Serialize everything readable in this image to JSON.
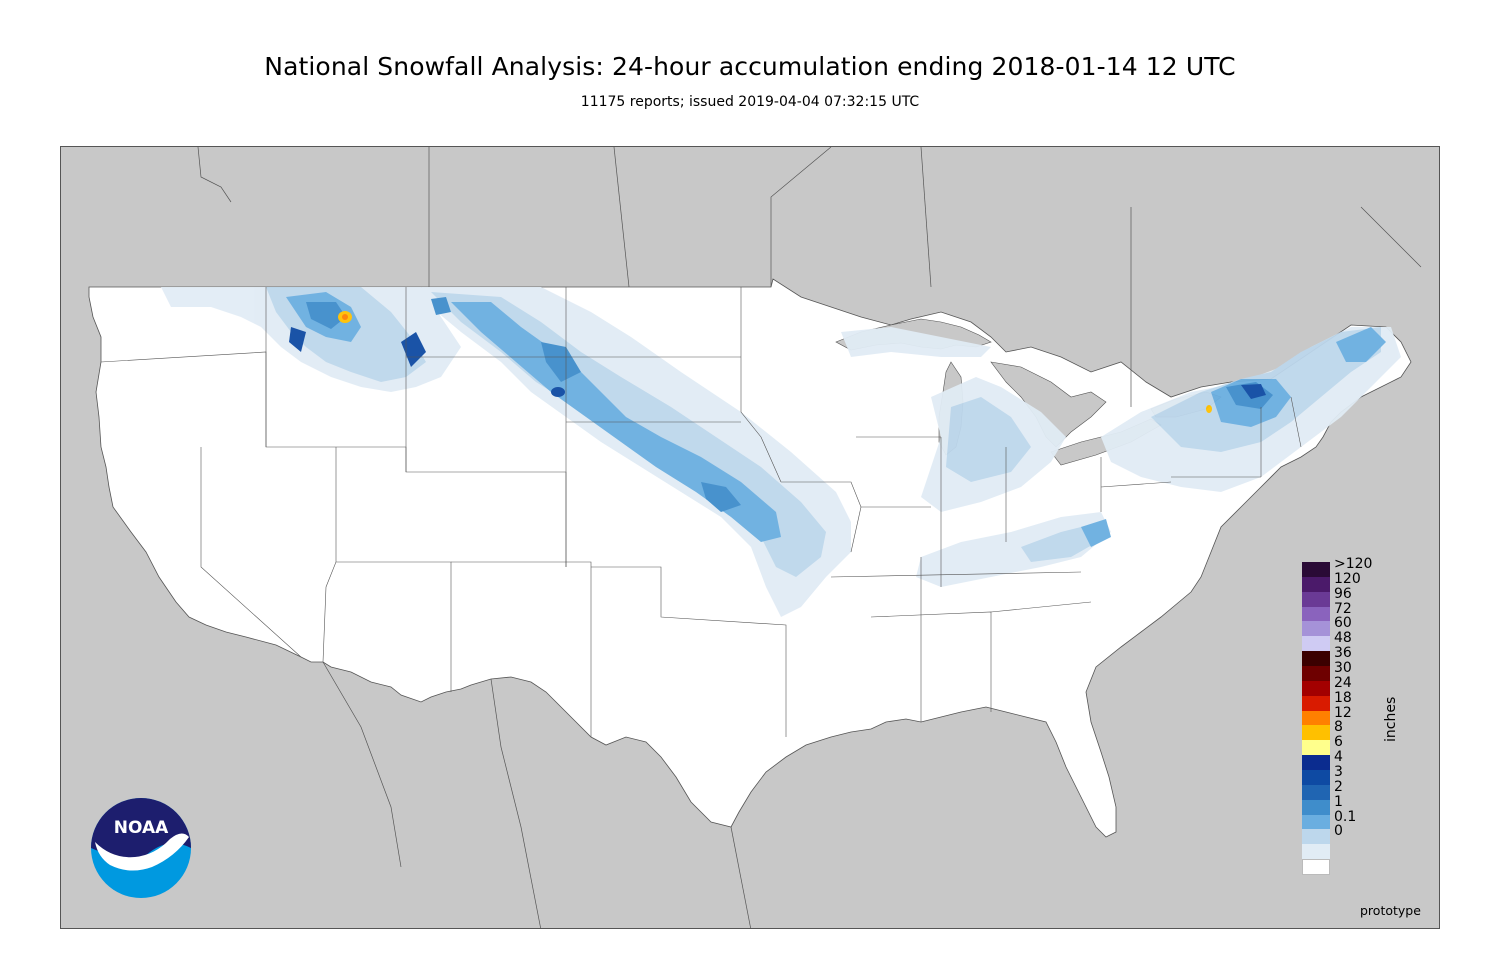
{
  "title": "National Snowfall Analysis: 24-hour accumulation ending 2018-01-14 12 UTC",
  "subtitle": "11175 reports; issued 2019-04-04 07:32:15 UTC",
  "legend": {
    "units": "inches",
    "entries": [
      {
        "label": ">120",
        "color": "#2a0a36"
      },
      {
        "label": "120",
        "color": "#4b1a6a"
      },
      {
        "label": "96",
        "color": "#6a3a95"
      },
      {
        "label": "72",
        "color": "#8a63bd"
      },
      {
        "label": "60",
        "color": "#a592d8"
      },
      {
        "label": "48",
        "color": "#cfcbf3"
      },
      {
        "label": "36",
        "color": "#3b0000"
      },
      {
        "label": "30",
        "color": "#6e0000"
      },
      {
        "label": "24",
        "color": "#a30000"
      },
      {
        "label": "18",
        "color": "#d91b00"
      },
      {
        "label": "12",
        "color": "#ff8000"
      },
      {
        "label": "8",
        "color": "#ffc000"
      },
      {
        "label": "6",
        "color": "#ffff8c"
      },
      {
        "label": "4",
        "color": "#0b2c8f"
      },
      {
        "label": "3",
        "color": "#0e4aa3"
      },
      {
        "label": "2",
        "color": "#2065b2"
      },
      {
        "label": "1",
        "color": "#3f8dcb"
      },
      {
        "label": "0.1",
        "color": "#6aaee0"
      },
      {
        "label": "0",
        "color": "#bdd7ec"
      },
      {
        "label": "",
        "color": "#e1ecf5"
      },
      {
        "label": "",
        "color": "#ffffff"
      }
    ]
  },
  "footer": {
    "prototype_label": "prototype"
  },
  "logo": {
    "text": "NOAA",
    "icon": "noaa-logo-icon"
  },
  "colors": {
    "land_outside": "#c8c8c8",
    "land_inside": "#ffffff",
    "border": "#555555"
  }
}
